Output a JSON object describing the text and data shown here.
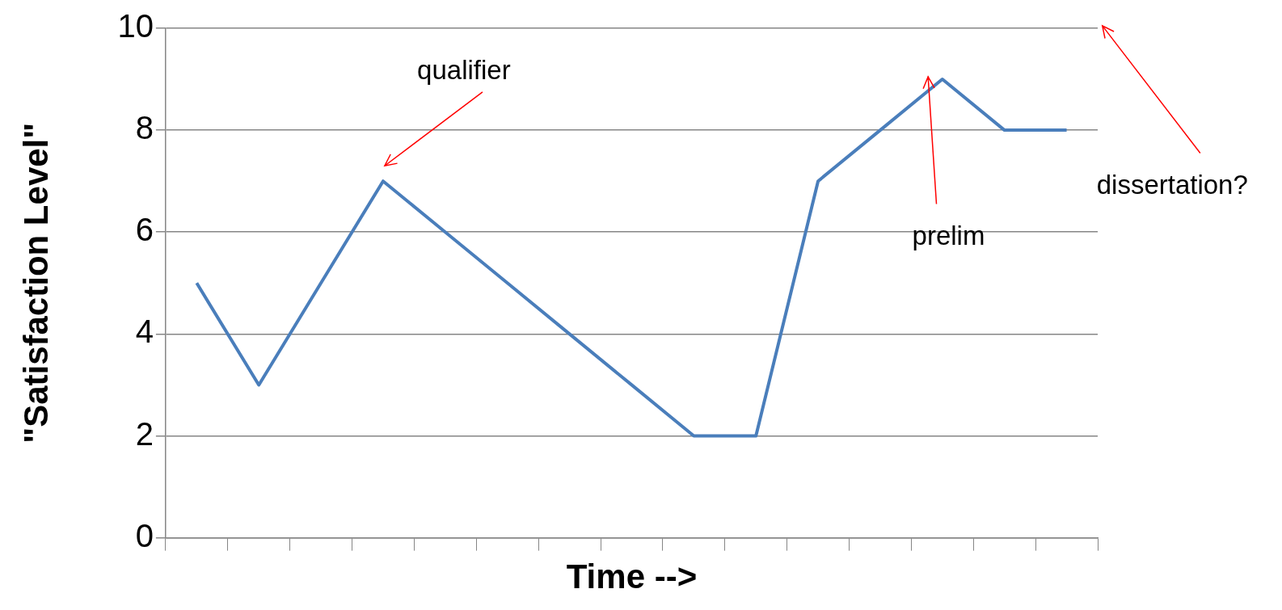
{
  "chart_data": {
    "type": "line",
    "xlabel": "Time -->",
    "ylabel": "\"Satisfaction Level\"",
    "categories": [
      null,
      null,
      null,
      null,
      null,
      null,
      null,
      null,
      null,
      null,
      null,
      null,
      null,
      null,
      null
    ],
    "series": [
      {
        "color": "#4a7ebb",
        "values": [
          5,
          3,
          5,
          7,
          6,
          5,
          4,
          3,
          2,
          2,
          7,
          8,
          9,
          8,
          8
        ]
      }
    ],
    "ylim": [
      0,
      10
    ],
    "yticks": [
      0,
      2,
      4,
      6,
      8,
      10
    ],
    "grid": "y",
    "legend": false,
    "marker": "none",
    "line_style": "solid",
    "annotations": [
      "qualifier",
      "prelim",
      "dissertation?"
    ]
  }
}
